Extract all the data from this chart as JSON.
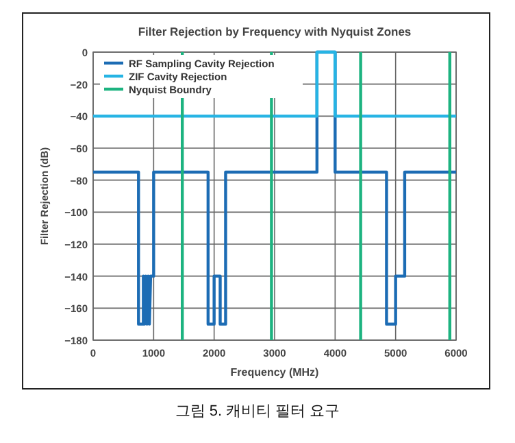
{
  "chart_data": {
    "type": "line",
    "title": "Filter Rejection by Frequency with Nyquist Zones",
    "xlabel": "Frequency (MHz)",
    "ylabel": "Filter Rejection (dB)",
    "xlim": [
      0,
      6000
    ],
    "xticks": [
      0,
      1000,
      2000,
      3000,
      4000,
      5000,
      6000
    ],
    "ylim": [
      -180,
      0
    ],
    "yticks": [
      0,
      -20,
      -40,
      -60,
      -80,
      -100,
      -120,
      -140,
      -160,
      -180
    ],
    "grid": true,
    "legend": "top left",
    "line_style": "solid",
    "marker": "none",
    "series": [
      {
        "name": "RF Sampling Cavity Rejection",
        "color": "#1c6cb4",
        "x": [
          0,
          750,
          750,
          830,
          830,
          850,
          870,
          890,
          910,
          930,
          950,
          970,
          1000,
          1000,
          1900,
          1900,
          2000,
          2000,
          2100,
          2100,
          2190,
          2190,
          3700,
          3700,
          4000,
          4000,
          4850,
          4850,
          5000,
          5000,
          5150,
          5150,
          6000
        ],
        "values": [
          -75,
          -75,
          -170,
          -170,
          -140,
          -170,
          -140,
          -170,
          -140,
          -170,
          -140,
          -140,
          -140,
          -75,
          -75,
          -170,
          -170,
          -140,
          -140,
          -170,
          -170,
          -75,
          -75,
          0,
          0,
          -75,
          -75,
          -170,
          -170,
          -140,
          -140,
          -75,
          -75
        ]
      },
      {
        "name": "ZIF Cavity Rejection",
        "color": "#26b4e4",
        "x": [
          0,
          3700,
          3700,
          4000,
          4000,
          6000
        ],
        "values": [
          -40,
          -40,
          0,
          0,
          -40,
          -40
        ]
      },
      {
        "name": "Nyquist Boundry",
        "color": "#1db380",
        "x": [
          1474,
          1474
        ],
        "values": [
          0,
          -180
        ]
      },
      {
        "color": "#1db380",
        "x": [
          2948,
          2948
        ],
        "values": [
          0,
          -180
        ]
      },
      {
        "color": "#1db380",
        "x": [
          4422,
          4422
        ],
        "values": [
          0,
          -180
        ]
      },
      {
        "color": "#1db380",
        "x": [
          5896,
          5896
        ],
        "values": [
          0,
          -180
        ]
      }
    ],
    "annotations": [
      "그림 5. 캐비티 필터 요구"
    ]
  }
}
